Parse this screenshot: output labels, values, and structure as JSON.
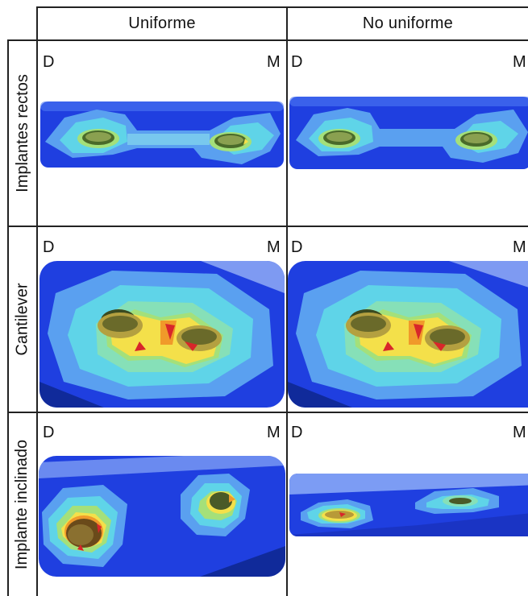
{
  "columns": [
    "Uniforme",
    "No uniforme"
  ],
  "rows": [
    "Implantes rectos",
    "Cantilever",
    "Implante inclinado"
  ],
  "corner_labels": {
    "left": "D",
    "right": "M"
  },
  "colors": {
    "deep_blue": "#1f3fe0",
    "blue": "#2f6ff0",
    "light_blue": "#5aa0f0",
    "cyan": "#5fd4e8",
    "teal": "#86e0b8",
    "green": "#a4e07a",
    "yellow": "#f4e04a",
    "orange": "#f09a2a",
    "red": "#d8262a"
  }
}
